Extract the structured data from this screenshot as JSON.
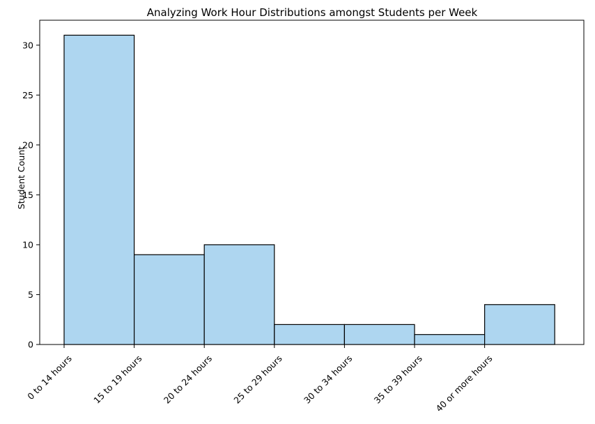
{
  "colors": {
    "bar_fill": "#aed6f0",
    "bar_edge": "#000000",
    "axis": "#000000",
    "background": "#ffffff"
  },
  "chart_data": {
    "type": "bar",
    "title": "Analyzing Work Hour Distributions amongst Students per Week",
    "xlabel": "",
    "ylabel": "Student Count",
    "categories": [
      "0 to 14 hours",
      "15 to 19 hours",
      "20 to 24 hours",
      "25 to 29 hours",
      "30 to 34 hours",
      "35 to 39 hours",
      "40 or more hours"
    ],
    "values": [
      31,
      9,
      10,
      2,
      2,
      1,
      4
    ],
    "yticks": [
      0,
      5,
      10,
      15,
      20,
      25,
      30
    ],
    "ylim": [
      0,
      32.5
    ],
    "grid": false,
    "legend": "none",
    "xtick_rotation": 45
  }
}
